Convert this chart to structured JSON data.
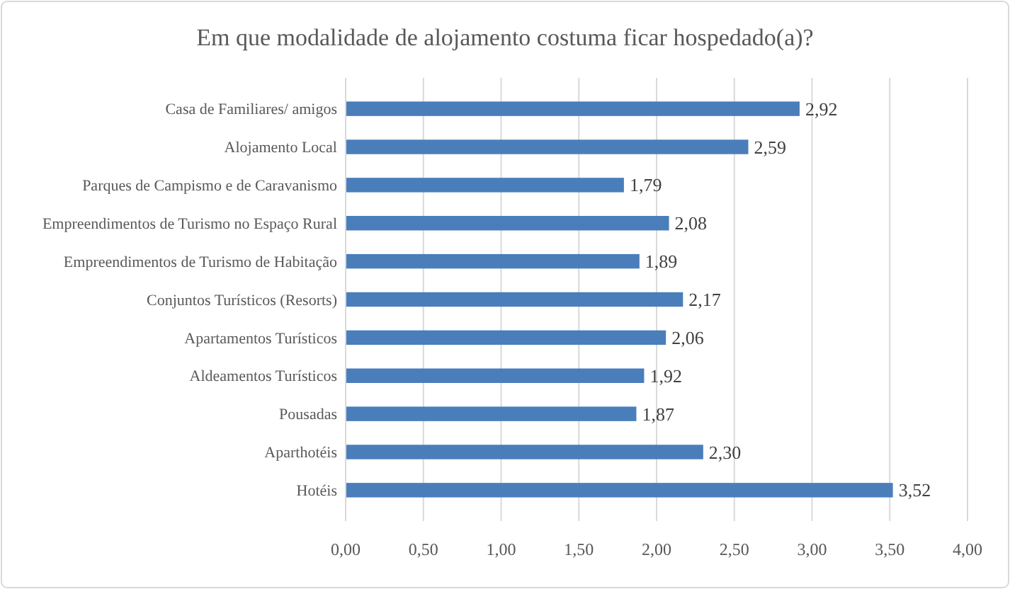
{
  "chart_data": {
    "type": "bar",
    "orientation": "horizontal",
    "title": "Em que modalidade de alojamento costuma ficar hospedado(a)?",
    "categories": [
      "Casa de Familiares/ amigos",
      "Alojamento Local",
      "Parques de Campismo e de Caravanismo",
      "Empreendimentos de Turismo no Espaço Rural",
      "Empreendimentos de Turismo de Habitação",
      "Conjuntos Turísticos (Resorts)",
      "Apartamentos Turísticos",
      "Aldeamentos Turísticos",
      "Pousadas",
      "Aparthotéis",
      "Hotéis"
    ],
    "values": [
      2.92,
      2.59,
      1.79,
      2.08,
      1.89,
      2.17,
      2.06,
      1.92,
      1.87,
      2.3,
      3.52
    ],
    "value_labels": [
      "2,92",
      "2,59",
      "1,79",
      "2,08",
      "1,89",
      "2,17",
      "2,06",
      "1,92",
      "1,87",
      "2,30",
      "3,52"
    ],
    "color": "#4a7ebb",
    "xlim": [
      0,
      4
    ],
    "xticks": [
      {
        "value": 0,
        "label": "0,00"
      },
      {
        "value": 0.5,
        "label": "0,50"
      },
      {
        "value": 1,
        "label": "1,00"
      },
      {
        "value": 1.5,
        "label": "1,50"
      },
      {
        "value": 2,
        "label": "2,00"
      },
      {
        "value": 2.5,
        "label": "2,50"
      },
      {
        "value": 3,
        "label": "3,00"
      },
      {
        "value": 3.5,
        "label": "3,50"
      },
      {
        "value": 4,
        "label": "4,00"
      }
    ],
    "grid": "x"
  }
}
